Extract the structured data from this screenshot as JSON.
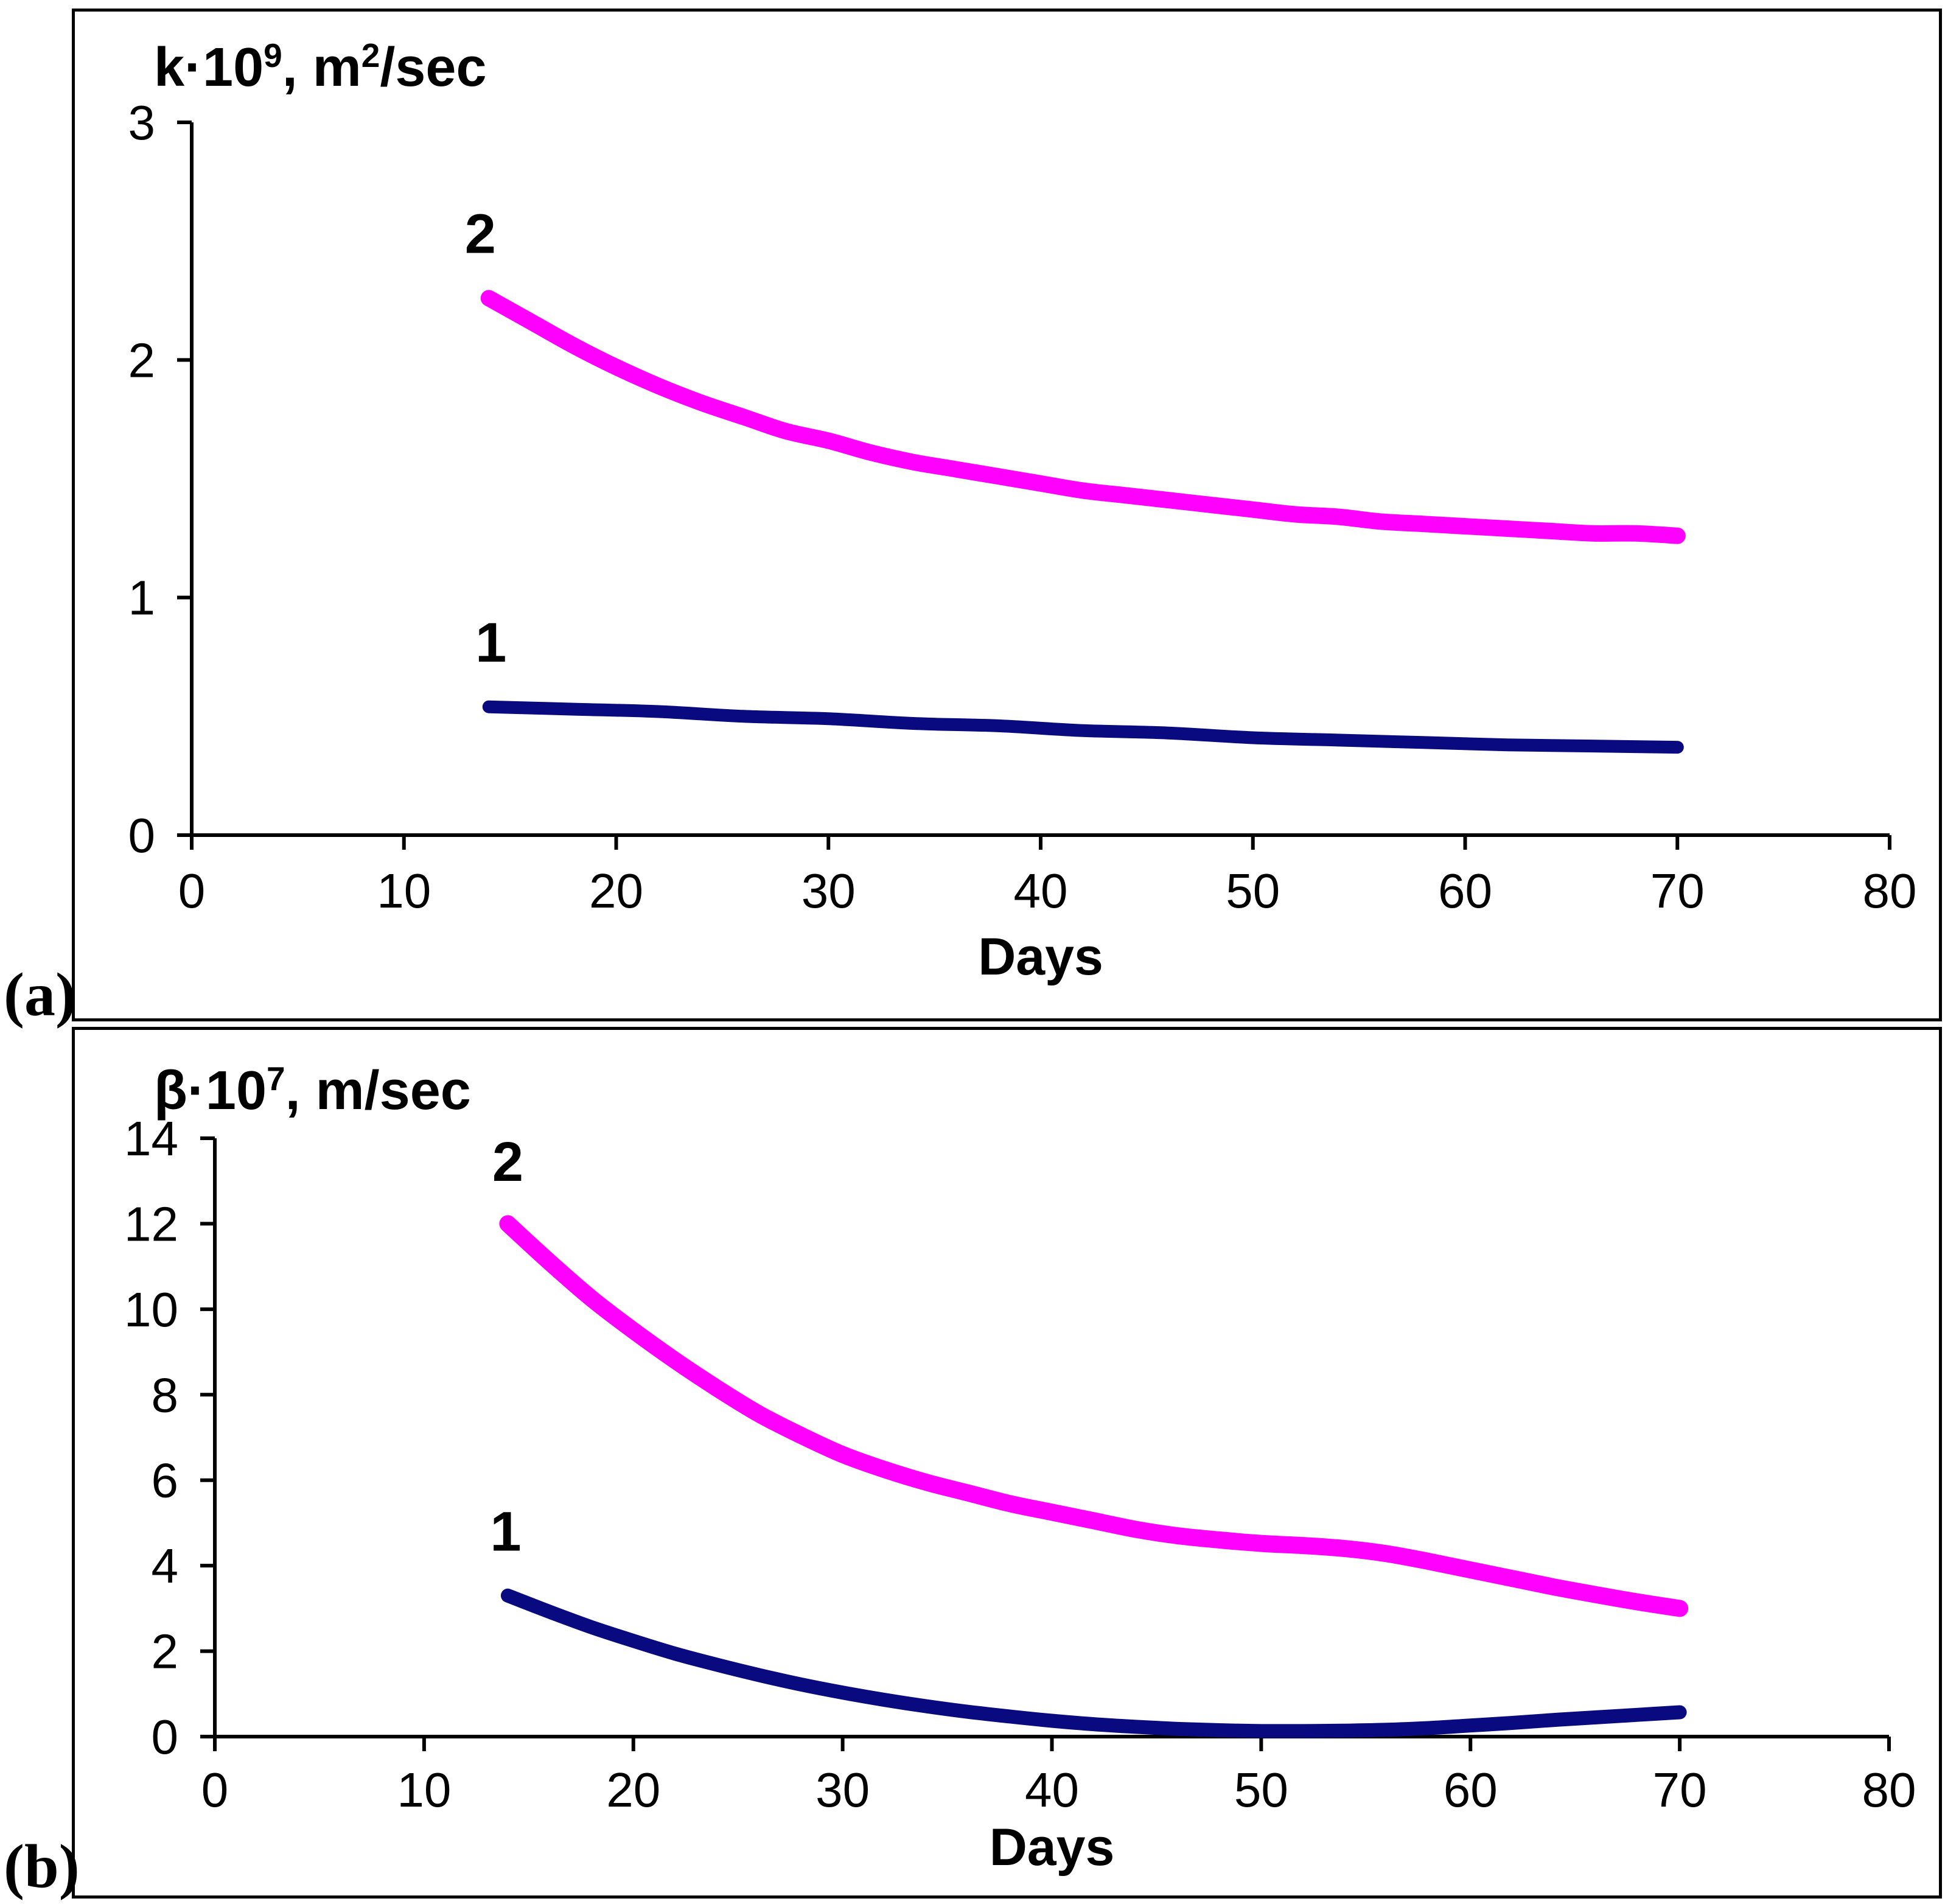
{
  "panels": {
    "a_label": "(a)",
    "b_label": "(b)"
  },
  "chart_data": [
    {
      "id": "a",
      "type": "line",
      "title": "k·10⁹, m²/sec",
      "title_parts": {
        "base": "k·10",
        "sup": "9",
        "mid": ", m",
        "sup2": "2",
        "end": "/sec"
      },
      "xlabel": "Days",
      "xlim": [
        0,
        80
      ],
      "ylim": [
        0,
        3
      ],
      "xticks": [
        0,
        10,
        20,
        30,
        40,
        50,
        60,
        70,
        80
      ],
      "yticks": [
        0,
        1,
        2,
        3
      ],
      "grid": false,
      "legend_position": "none",
      "series": [
        {
          "name": "2",
          "color": "#ff00ff",
          "label": {
            "text": "2",
            "day": 13.6,
            "value": 2.45
          },
          "points": [
            [
              14,
              2.26
            ],
            [
              16,
              2.16
            ],
            [
              18,
              2.06
            ],
            [
              20,
              1.97
            ],
            [
              22,
              1.89
            ],
            [
              24,
              1.82
            ],
            [
              26,
              1.76
            ],
            [
              28,
              1.7
            ],
            [
              30,
              1.66
            ],
            [
              32,
              1.61
            ],
            [
              34,
              1.57
            ],
            [
              36,
              1.54
            ],
            [
              38,
              1.51
            ],
            [
              40,
              1.48
            ],
            [
              42,
              1.45
            ],
            [
              44,
              1.43
            ],
            [
              46,
              1.41
            ],
            [
              48,
              1.39
            ],
            [
              50,
              1.37
            ],
            [
              52,
              1.35
            ],
            [
              54,
              1.34
            ],
            [
              56,
              1.32
            ],
            [
              58,
              1.31
            ],
            [
              60,
              1.3
            ],
            [
              62,
              1.29
            ],
            [
              64,
              1.28
            ],
            [
              66,
              1.27
            ],
            [
              68,
              1.27
            ],
            [
              70,
              1.26
            ]
          ]
        },
        {
          "name": "1",
          "color": "#0a0a80",
          "label": {
            "text": "1",
            "day": 14.1,
            "value": 0.73
          },
          "points": [
            [
              14,
              0.54
            ],
            [
              18,
              0.53
            ],
            [
              22,
              0.52
            ],
            [
              26,
              0.5
            ],
            [
              30,
              0.49
            ],
            [
              34,
              0.47
            ],
            [
              38,
              0.46
            ],
            [
              42,
              0.44
            ],
            [
              46,
              0.43
            ],
            [
              50,
              0.41
            ],
            [
              54,
              0.4
            ],
            [
              58,
              0.39
            ],
            [
              62,
              0.38
            ],
            [
              66,
              0.375
            ],
            [
              70,
              0.37
            ]
          ]
        }
      ]
    },
    {
      "id": "b",
      "type": "line",
      "title": "β·10⁷, m/sec",
      "title_parts": {
        "base": "β·10",
        "sup": "7",
        "mid": ", m/sec",
        "sup2": "",
        "end": ""
      },
      "xlabel": "Days",
      "xlim": [
        0,
        80
      ],
      "ylim": [
        0,
        14
      ],
      "xticks": [
        0,
        10,
        20,
        30,
        40,
        50,
        60,
        70,
        80
      ],
      "yticks": [
        0,
        2,
        4,
        6,
        8,
        10,
        12,
        14
      ],
      "grid": false,
      "legend_position": "none",
      "series": [
        {
          "name": "2",
          "color": "#ff00ff",
          "label": {
            "text": "2",
            "day": 14.0,
            "value": 13.0
          },
          "points": [
            [
              14,
              12.0
            ],
            [
              16,
              11.1
            ],
            [
              18,
              10.25
            ],
            [
              20,
              9.5
            ],
            [
              22,
              8.8
            ],
            [
              24,
              8.15
            ],
            [
              26,
              7.55
            ],
            [
              28,
              7.05
            ],
            [
              30,
              6.6
            ],
            [
              32,
              6.25
            ],
            [
              34,
              5.95
            ],
            [
              36,
              5.7
            ],
            [
              38,
              5.45
            ],
            [
              40,
              5.25
            ],
            [
              42,
              5.05
            ],
            [
              44,
              4.85
            ],
            [
              46,
              4.7
            ],
            [
              48,
              4.6
            ],
            [
              50,
              4.52
            ],
            [
              52,
              4.47
            ],
            [
              54,
              4.4
            ],
            [
              56,
              4.28
            ],
            [
              58,
              4.1
            ],
            [
              60,
              3.9
            ],
            [
              62,
              3.7
            ],
            [
              64,
              3.5
            ],
            [
              66,
              3.32
            ],
            [
              68,
              3.15
            ],
            [
              70,
              3.0
            ]
          ]
        },
        {
          "name": "1",
          "color": "#0a0a80",
          "label": {
            "text": "1",
            "day": 13.9,
            "value": 4.35
          },
          "points": [
            [
              14,
              3.3
            ],
            [
              16,
              2.92
            ],
            [
              18,
              2.56
            ],
            [
              20,
              2.24
            ],
            [
              22,
              1.94
            ],
            [
              24,
              1.68
            ],
            [
              26,
              1.44
            ],
            [
              28,
              1.22
            ],
            [
              30,
              1.03
            ],
            [
              32,
              0.86
            ],
            [
              34,
              0.71
            ],
            [
              36,
              0.58
            ],
            [
              38,
              0.47
            ],
            [
              40,
              0.37
            ],
            [
              42,
              0.29
            ],
            [
              44,
              0.23
            ],
            [
              46,
              0.18
            ],
            [
              48,
              0.15
            ],
            [
              50,
              0.13
            ],
            [
              52,
              0.13
            ],
            [
              54,
              0.14
            ],
            [
              56,
              0.16
            ],
            [
              58,
              0.2
            ],
            [
              60,
              0.26
            ],
            [
              62,
              0.32
            ],
            [
              64,
              0.39
            ],
            [
              66,
              0.45
            ],
            [
              68,
              0.51
            ],
            [
              70,
              0.57
            ]
          ]
        }
      ]
    }
  ]
}
